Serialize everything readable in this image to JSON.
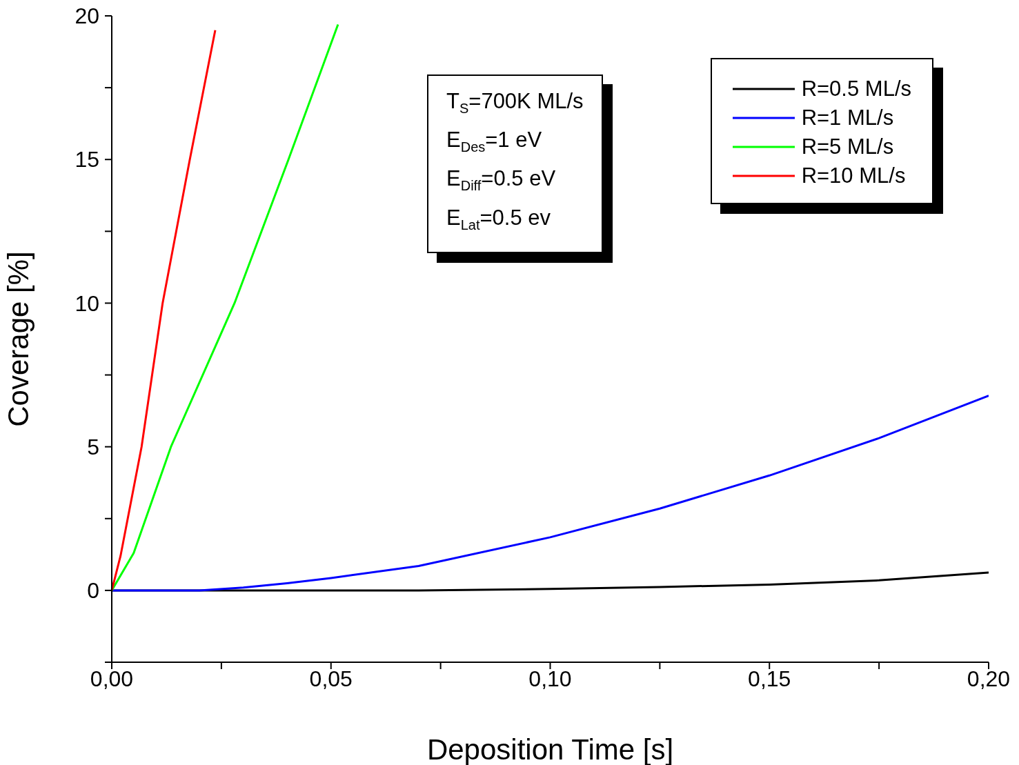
{
  "chart_data": {
    "type": "line",
    "xlabel": "Deposition Time [s]",
    "ylabel": "Coverage [%]",
    "xlim": [
      0,
      0.2
    ],
    "ylim": [
      -2.5,
      20
    ],
    "xticks": [
      {
        "value": 0,
        "label": "0,00"
      },
      {
        "value": 0.025,
        "label": null
      },
      {
        "value": 0.05,
        "label": "0,05"
      },
      {
        "value": 0.075,
        "label": null
      },
      {
        "value": 0.1,
        "label": "0,10"
      },
      {
        "value": 0.125,
        "label": null
      },
      {
        "value": 0.15,
        "label": "0,15"
      },
      {
        "value": 0.175,
        "label": null
      },
      {
        "value": 0.2,
        "label": "0,20"
      }
    ],
    "yticks": [
      {
        "value": -2.5,
        "label": null
      },
      0,
      {
        "value": 2.5,
        "label": null
      },
      5,
      {
        "value": 7.5,
        "label": null
      },
      10,
      {
        "value": 12.5,
        "label": null
      },
      15,
      {
        "value": 17.5,
        "label": null
      },
      20
    ],
    "grid": false,
    "legend": "top right",
    "marker": "none",
    "line_style": "solid",
    "annotations": [
      "T$_{S}$=700K ML/s\nE$_{Des}$=1 eV\nE$_{Diff}$=0.5 eV\nE$_{Lat}$=0.5 ev"
    ],
    "series": [
      {
        "name": "R=0.5 ML/s",
        "color": "#000000",
        "x": [
          0,
          0.02,
          0.05,
          0.07,
          0.1,
          0.125,
          0.15,
          0.175,
          0.2
        ],
        "values": [
          0,
          0,
          0,
          0,
          0.05,
          0.12,
          0.2,
          0.35,
          0.62
        ]
      },
      {
        "name": "R=1 ML/s",
        "color": "#0000ff",
        "x": [
          0,
          0.02,
          0.03,
          0.04,
          0.05,
          0.07,
          0.1,
          0.125,
          0.15,
          0.175,
          0.2
        ],
        "values": [
          0,
          0,
          0.1,
          0.25,
          0.43,
          0.85,
          1.85,
          2.85,
          4.0,
          5.3,
          6.78
        ]
      },
      {
        "name": "R=5 ML/s",
        "color": "#00ff00",
        "x": [
          0,
          0.005,
          0.0135,
          0.028,
          0.0403,
          0.0516
        ],
        "values": [
          0,
          1.3,
          5,
          10,
          15,
          19.7
        ]
      },
      {
        "name": "R=10 ML/s",
        "color": "#ff0000",
        "x": [
          0,
          0.002,
          0.0068,
          0.0116,
          0.0178,
          0.0236
        ],
        "values": [
          0,
          1.2,
          5,
          10,
          15,
          19.5
        ]
      }
    ]
  }
}
